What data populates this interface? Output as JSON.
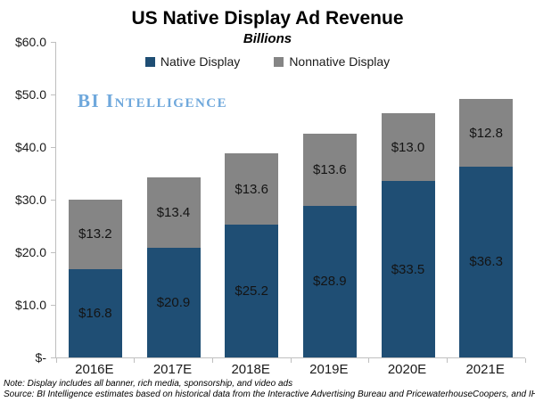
{
  "title": "US Native Display Ad Revenue",
  "subtitle": "Billions",
  "logo": "BI Intelligence",
  "notes": {
    "note": "Note: Display includes all banner, rich media, sponsorship, and video ads",
    "source": "Source: BI Intelligence estimates based on historical data from the Interactive Advertising Bureau and PricewaterhouseCoopers, and IHS"
  },
  "colors": {
    "native": "#1F4E74",
    "nonnative": "#858585",
    "axis": "#BFBFBF",
    "logo_blue": "#6FA8DC"
  },
  "chart_data": {
    "type": "bar",
    "stacked": true,
    "title": "US Native Display Ad Revenue",
    "subtitle": "Billions",
    "categories": [
      "2016E",
      "2017E",
      "2018E",
      "2019E",
      "2020E",
      "2021E"
    ],
    "series": [
      {
        "name": "Native Display",
        "color": "#1F4E74",
        "values": [
          16.8,
          20.9,
          25.2,
          28.9,
          33.5,
          36.3
        ],
        "labels": [
          "$16.8",
          "$20.9",
          "$25.2",
          "$28.9",
          "$33.5",
          "$36.3"
        ]
      },
      {
        "name": "Nonnative Display",
        "color": "#858585",
        "values": [
          13.2,
          13.4,
          13.6,
          13.6,
          13.0,
          12.8
        ],
        "labels": [
          "$13.2",
          "$13.4",
          "$13.6",
          "$13.6",
          "$13.0",
          "$12.8"
        ]
      }
    ],
    "ylim": [
      0,
      60
    ],
    "yticks": [
      {
        "value": 60,
        "label": "$60.0"
      },
      {
        "value": 50,
        "label": "$50.0"
      },
      {
        "value": 40,
        "label": "$40.0"
      },
      {
        "value": 30,
        "label": "$30.0"
      },
      {
        "value": 20,
        "label": "$20.0"
      },
      {
        "value": 10,
        "label": "$10.0"
      },
      {
        "value": 0,
        "label": "$-"
      }
    ],
    "grid": false,
    "legend_position": "top"
  }
}
